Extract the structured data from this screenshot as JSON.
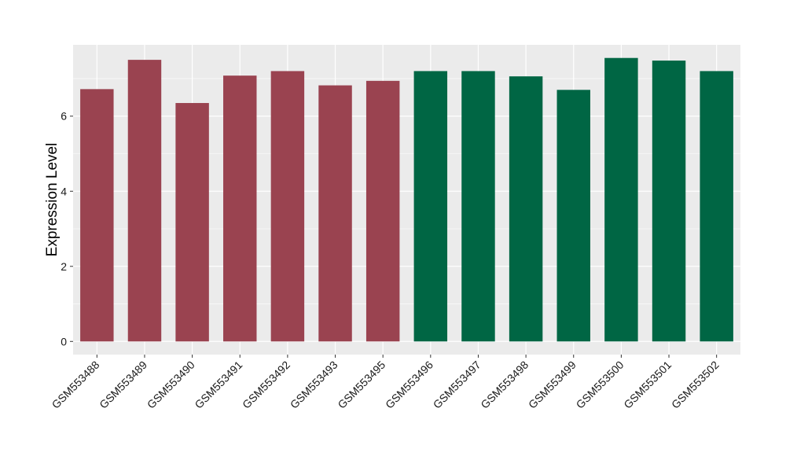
{
  "chart_data": {
    "type": "bar",
    "title": "",
    "xlabel": "",
    "ylabel": "Expression Level",
    "categories": [
      "GSM553488",
      "GSM553489",
      "GSM553490",
      "GSM553491",
      "GSM553492",
      "GSM553493",
      "GSM553495",
      "GSM553496",
      "GSM553497",
      "GSM553498",
      "GSM553499",
      "GSM553500",
      "GSM553501",
      "GSM553502"
    ],
    "values": [
      6.72,
      7.5,
      6.35,
      7.08,
      7.2,
      6.82,
      6.94,
      7.2,
      7.2,
      7.06,
      6.7,
      7.55,
      7.48,
      7.2
    ],
    "bar_colors": [
      "#9a4350",
      "#9a4350",
      "#9a4350",
      "#9a4350",
      "#9a4350",
      "#9a4350",
      "#9a4350",
      "#006644",
      "#006644",
      "#006644",
      "#006644",
      "#006644",
      "#006644",
      "#006644"
    ],
    "ylim": [
      -0.35,
      7.9
    ],
    "yticks": [
      0,
      2,
      4,
      6
    ],
    "ytick_labels": [
      "0",
      "2",
      "4",
      "6"
    ],
    "grid": true,
    "legend": "none",
    "panel_background": "#ebebeb",
    "gridline_color": "#ffffff"
  }
}
